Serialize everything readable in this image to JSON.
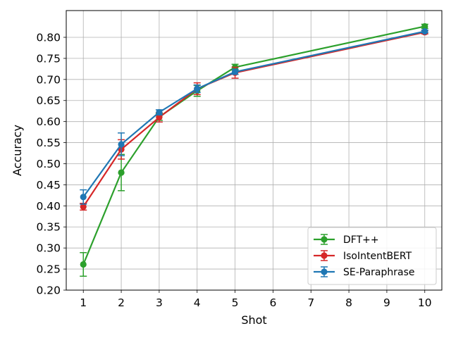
{
  "chart_data": {
    "type": "line",
    "title": "",
    "xlabel": "Shot",
    "ylabel": "Accuracy",
    "x": [
      1,
      2,
      3,
      4,
      5,
      10
    ],
    "xticks": [
      1,
      2,
      3,
      4,
      5,
      6,
      7,
      8,
      9,
      10
    ],
    "xlim": [
      0.55,
      10.45
    ],
    "yticks": [
      0.2,
      0.25,
      0.3,
      0.35,
      0.4,
      0.45,
      0.5,
      0.55,
      0.6,
      0.65,
      0.7,
      0.75,
      0.8
    ],
    "ylim": [
      0.2,
      0.8635
    ],
    "grid": true,
    "legend_position": "lower-right",
    "series": [
      {
        "name": "DFT++",
        "color": "#2ca02c",
        "values": [
          0.261,
          0.479,
          0.611,
          0.673,
          0.729,
          0.826
        ],
        "errors": [
          0.028,
          0.043,
          0.008,
          0.013,
          0.007,
          0.005
        ]
      },
      {
        "name": "IsoIntentBERT",
        "color": "#d62728",
        "values": [
          0.398,
          0.534,
          0.61,
          0.678,
          0.716,
          0.812
        ],
        "errors": [
          0.008,
          0.023,
          0.011,
          0.014,
          0.013,
          0.004
        ]
      },
      {
        "name": "SE-Paraphrase",
        "color": "#1f77b4",
        "values": [
          0.421,
          0.546,
          0.622,
          0.678,
          0.718,
          0.814
        ],
        "errors": [
          0.017,
          0.027,
          0.006,
          0.009,
          0.006,
          0.003
        ]
      }
    ]
  }
}
